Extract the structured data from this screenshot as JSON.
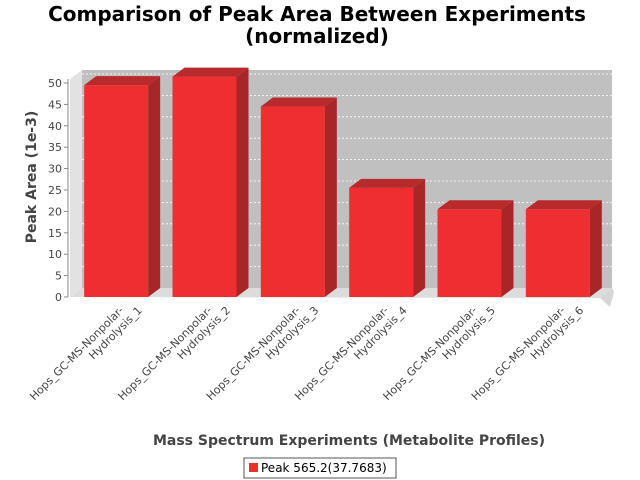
{
  "chart_data": {
    "type": "bar",
    "title_line1": "Comparison of Peak Area Between Experiments",
    "title_line2": "(normalized)",
    "xlabel": "Mass Spectrum Experiments (Metabolite Profiles)",
    "ylabel": "Peak Area (1e-3)",
    "ylim": [
      0,
      50
    ],
    "yticks": [
      "0",
      "5",
      "10",
      "15",
      "20",
      "25",
      "30",
      "35",
      "40",
      "45",
      "50"
    ],
    "categories": [
      [
        "Hops_GC-MS-Nonpolar-",
        "Hydrolysis_1"
      ],
      [
        "Hops_GC-MS-Nonpolar-",
        "Hydrolysis_2"
      ],
      [
        "Hops_GC-MS-Nonpolar-",
        "Hydrolysis_3"
      ],
      [
        "Hops_GC-MS-Nonpolar-",
        "Hydrolysis_4"
      ],
      [
        "Hops_GC-MS-Nonpolar-",
        "Hydrolysis_5"
      ],
      [
        "Hops_GC-MS-Nonpolar-",
        "Hydrolysis_6"
      ]
    ],
    "series": [
      {
        "name": "Peak 565.2(37.7683)",
        "values": [
          49.5,
          51.5,
          44.5,
          25.5,
          20.5,
          20.5
        ],
        "color": "#ee2e31"
      }
    ],
    "grid": true,
    "legend": "bottom-center",
    "plot_background": "#c0c0c0"
  }
}
